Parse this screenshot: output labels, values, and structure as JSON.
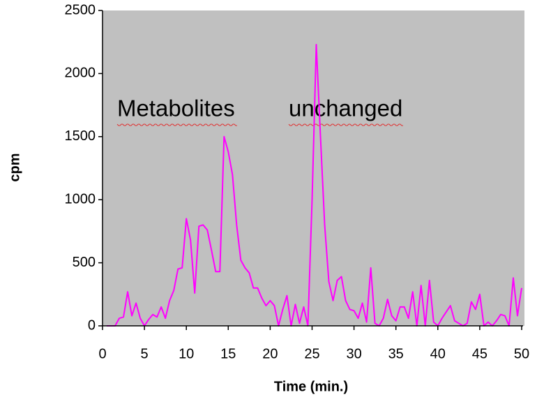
{
  "chart_data": {
    "type": "line",
    "x_label": "Time (min.)",
    "y_label": "cpm",
    "annotations": [
      "Metabolites",
      "unchanged"
    ],
    "x": [
      0.5,
      1,
      1.5,
      2,
      2.5,
      3,
      3.5,
      4,
      4.5,
      5,
      5.5,
      6,
      6.5,
      7,
      7.5,
      8,
      8.5,
      9,
      9.5,
      10,
      10.5,
      11,
      11.5,
      12,
      12.5,
      13,
      13.5,
      14,
      14.5,
      15,
      15.5,
      16,
      16.5,
      17,
      17.5,
      18,
      18.5,
      19,
      19.5,
      20,
      20.5,
      21,
      21.5,
      22,
      22.5,
      23,
      23.5,
      24,
      24.5,
      25,
      25.5,
      26,
      26.5,
      27,
      27.5,
      28,
      28.5,
      29,
      29.5,
      30,
      30.5,
      31,
      31.5,
      32,
      32.5,
      33,
      33.5,
      34,
      34.5,
      35,
      35.5,
      36,
      36.5,
      37,
      37.5,
      38,
      38.5,
      39,
      39.5,
      40,
      40.5,
      41,
      41.5,
      42,
      42.5,
      43,
      43.5,
      44,
      44.5,
      45,
      45.5,
      46,
      46.5,
      47,
      47.5,
      48,
      48.5,
      49,
      49.5,
      50
    ],
    "series": [
      {
        "name": "cpm",
        "color": "#ff00ff",
        "values": [
          0,
          0,
          0,
          60,
          70,
          270,
          80,
          180,
          60,
          0,
          50,
          90,
          70,
          150,
          60,
          200,
          280,
          450,
          460,
          850,
          680,
          260,
          790,
          800,
          760,
          600,
          430,
          430,
          1500,
          1380,
          1200,
          800,
          520,
          460,
          420,
          300,
          300,
          220,
          160,
          200,
          160,
          0,
          130,
          240,
          0,
          170,
          20,
          150,
          0,
          1000,
          2230,
          1500,
          800,
          350,
          200,
          360,
          390,
          200,
          130,
          120,
          60,
          180,
          30,
          460,
          20,
          0,
          60,
          210,
          80,
          40,
          150,
          150,
          60,
          270,
          0,
          320,
          0,
          360,
          30,
          0,
          60,
          110,
          160,
          40,
          20,
          0,
          20,
          190,
          130,
          250,
          0,
          30,
          0,
          40,
          90,
          80,
          0,
          380,
          80,
          300
        ]
      }
    ],
    "xlim": [
      0,
      50
    ],
    "xticks": [
      0,
      5,
      10,
      15,
      20,
      25,
      30,
      35,
      40,
      45,
      50
    ],
    "ylim": [
      0,
      2500
    ],
    "yticks": [
      0,
      500,
      1000,
      1500,
      2000,
      2500
    ],
    "plot_background": "#c0c0c0"
  }
}
